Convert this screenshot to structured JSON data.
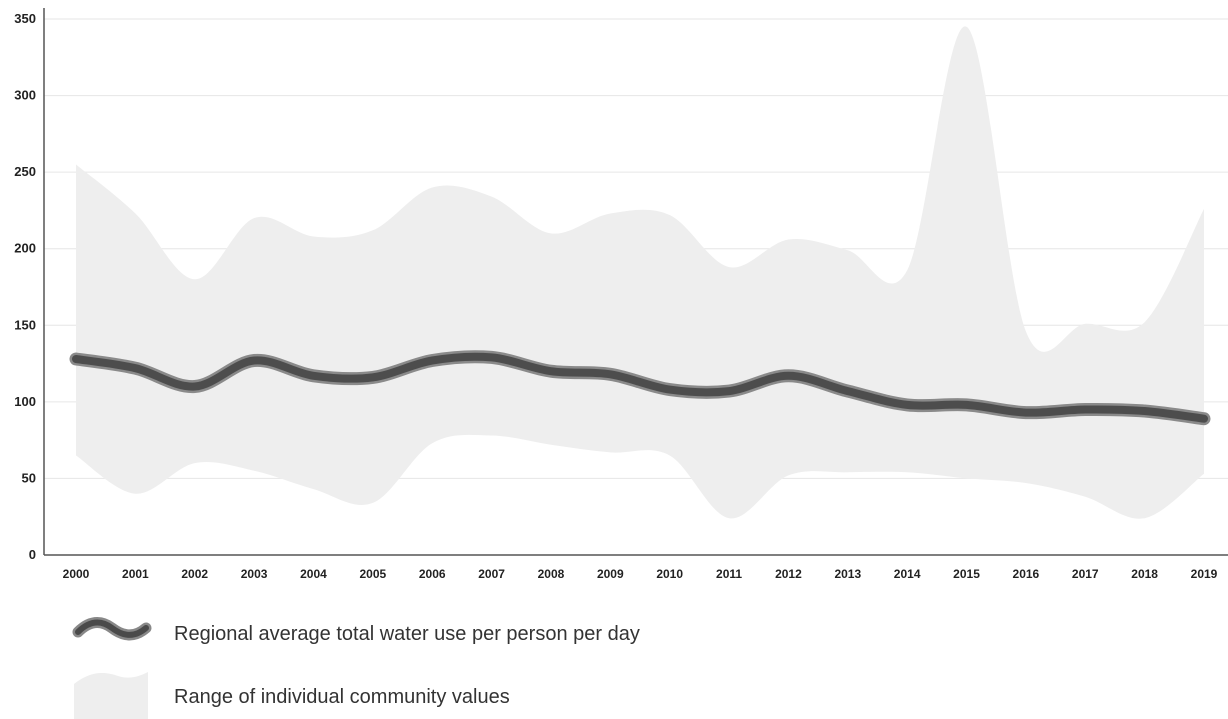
{
  "chart_data": {
    "type": "area",
    "x": [
      "2000",
      "2001",
      "2002",
      "2003",
      "2004",
      "2005",
      "2006",
      "2007",
      "2008",
      "2009",
      "2010",
      "2011",
      "2012",
      "2013",
      "2014",
      "2015",
      "2016",
      "2017",
      "2018",
      "2019"
    ],
    "ylim": [
      0,
      350
    ],
    "yticks": [
      "0",
      "50",
      "100",
      "150",
      "200",
      "250",
      "300",
      "350"
    ],
    "grid": true,
    "series": [
      {
        "name": "Regional average total water use per person per day",
        "type": "line",
        "color": "#555555",
        "values": [
          128,
          122,
          110,
          127,
          117,
          116,
          127,
          129,
          120,
          118,
          108,
          107,
          117,
          107,
          98,
          98,
          93,
          95,
          94,
          89
        ]
      },
      {
        "name": "Range of individual community values",
        "type": "band",
        "color": "#eeeeee",
        "upper": [
          255,
          223,
          180,
          220,
          208,
          212,
          240,
          234,
          210,
          223,
          222,
          188,
          206,
          199,
          186,
          345,
          146,
          151,
          152,
          226
        ],
        "lower": [
          65,
          40,
          60,
          55,
          43,
          34,
          73,
          78,
          72,
          67,
          65,
          24,
          52,
          54,
          54,
          50,
          47,
          38,
          24,
          53
        ]
      }
    ]
  },
  "legend": {
    "items": [
      {
        "label": "Regional average total water use per person per day",
        "icon": "wave-line-icon"
      },
      {
        "label": "Range of individual community values",
        "icon": "wave-area-icon"
      }
    ]
  }
}
